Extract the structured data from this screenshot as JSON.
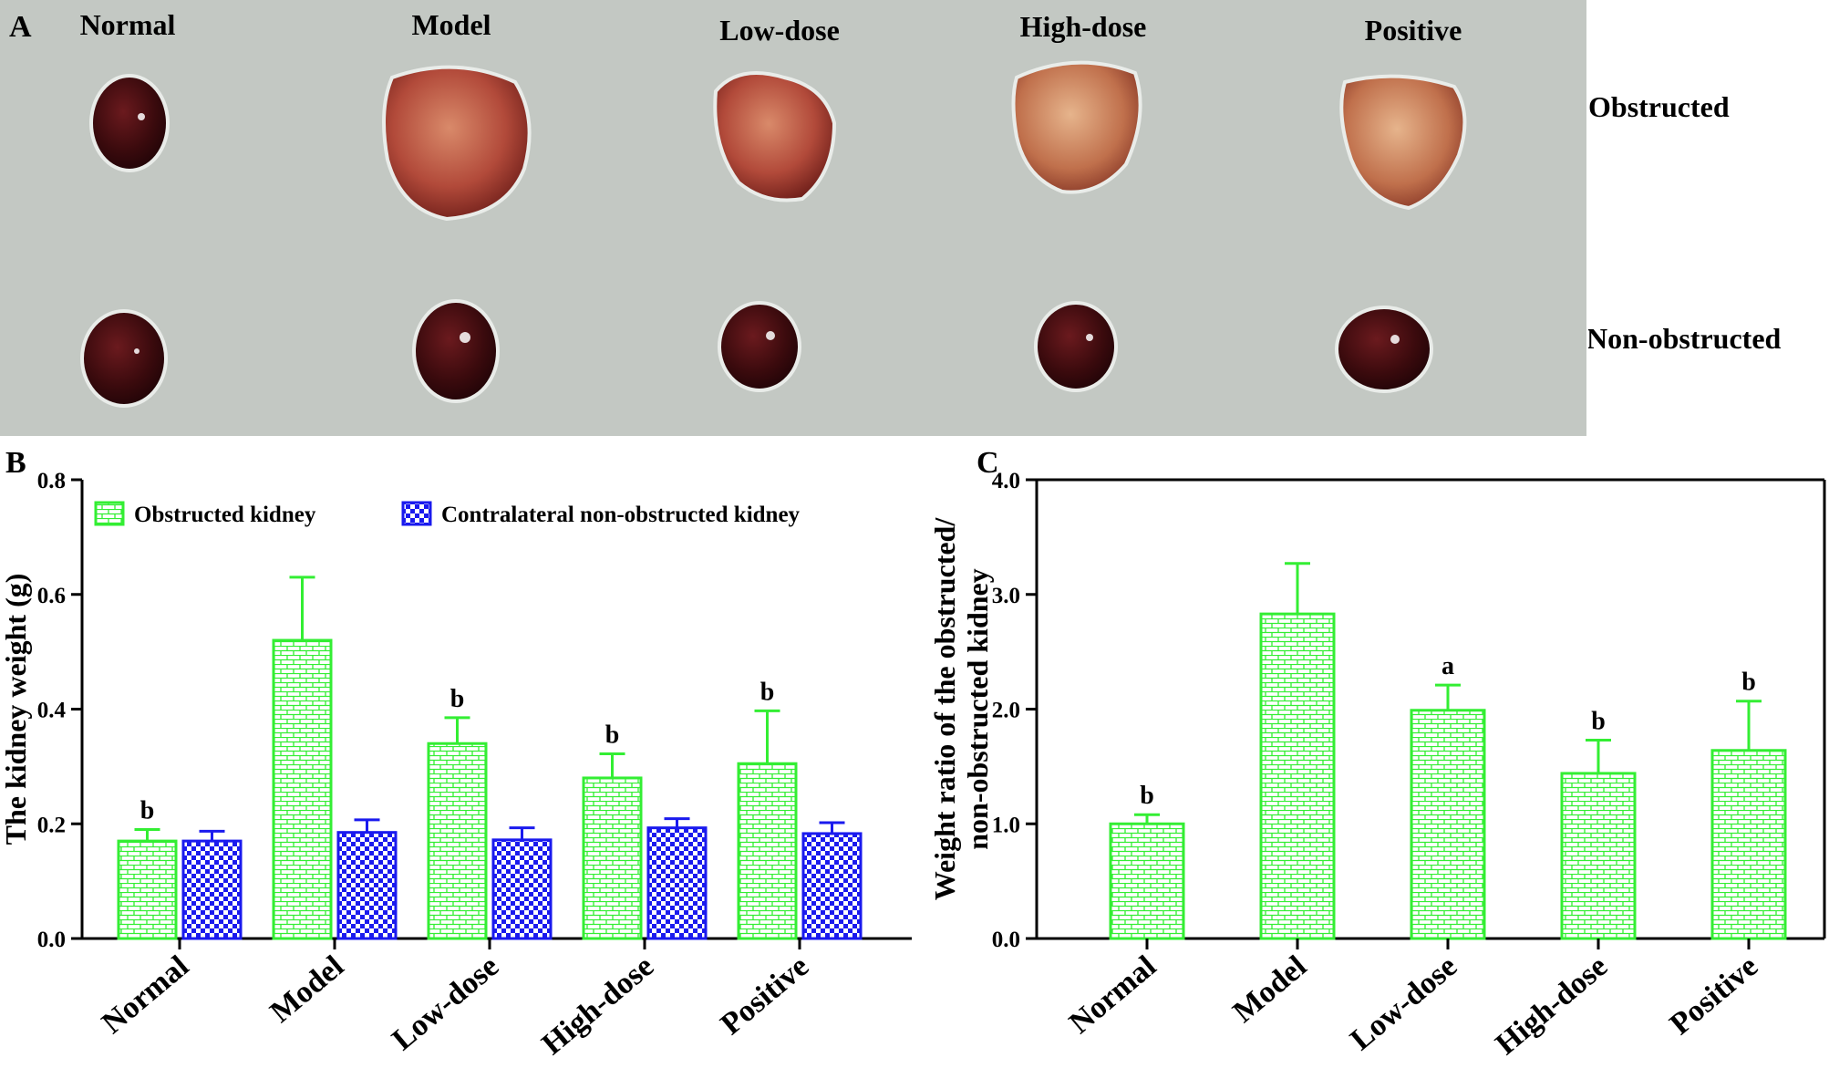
{
  "photo": {
    "panel_label": "A",
    "columns": [
      "Normal",
      "Model",
      "Low-dose",
      "High-dose",
      "Positive"
    ],
    "rows": [
      "Obstructed",
      "Non-obstructed"
    ]
  },
  "colors": {
    "obstructed": "#33ee33",
    "contralateral": "#1a1aee",
    "photo_background": "#c3c8c3",
    "kidney_dark": "#3a0a0d",
    "kidney_swollen": "#9e3428"
  },
  "chart_data": [
    {
      "panel_label": "B",
      "type": "bar",
      "categories": [
        "Normal",
        "Model",
        "Low-dose",
        "High-dose",
        "Positive"
      ],
      "series": [
        {
          "name": "Obstructed kidney",
          "values": [
            0.17,
            0.52,
            0.34,
            0.28,
            0.305
          ],
          "errors": [
            0.02,
            0.11,
            0.045,
            0.042,
            0.092
          ],
          "annotations": [
            "b",
            "",
            "b",
            "b",
            "b"
          ]
        },
        {
          "name": "Contralateral non-obstructed kidney",
          "values": [
            0.17,
            0.185,
            0.172,
            0.193,
            0.183
          ],
          "errors": [
            0.017,
            0.022,
            0.021,
            0.016,
            0.019
          ],
          "annotations": [
            "",
            "",
            "",
            "",
            ""
          ]
        }
      ],
      "ylabel": "The kidney weight (g)",
      "ylim": [
        0,
        0.8
      ],
      "yticks": [
        0,
        0.2,
        0.4,
        0.6,
        0.8
      ],
      "ytick_labels": [
        "0.0",
        "0.2",
        "0.4",
        "0.6",
        "0.8"
      ],
      "legend": "top",
      "grid": false
    },
    {
      "panel_label": "C",
      "type": "bar",
      "categories": [
        "Normal",
        "Model",
        "Low-dose",
        "High-dose",
        "Positive"
      ],
      "series": [
        {
          "name": "Weight ratio",
          "values": [
            1.0,
            2.83,
            1.99,
            1.44,
            1.64
          ],
          "errors": [
            0.08,
            0.44,
            0.22,
            0.29,
            0.43
          ],
          "annotations": [
            "b",
            "",
            "a",
            "b",
            "b"
          ]
        }
      ],
      "ylabel_lines": [
        "Weight ratio of the obstructed/",
        "non-obstructed kidney"
      ],
      "ylim": [
        0,
        4
      ],
      "yticks": [
        0,
        1,
        2,
        3,
        4
      ],
      "ytick_labels": [
        "0.0",
        "1.0",
        "2.0",
        "3.0",
        "4.0"
      ],
      "grid": false
    }
  ]
}
